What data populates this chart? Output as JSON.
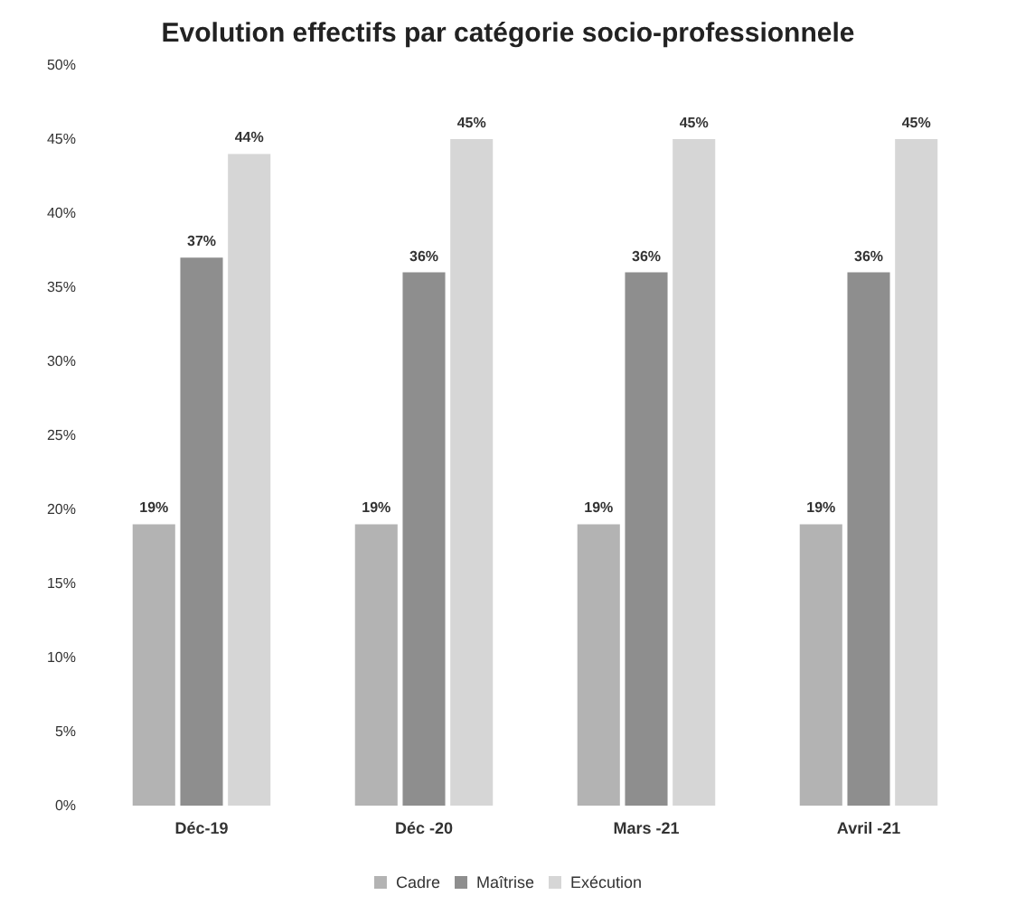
{
  "chart_data": {
    "type": "bar",
    "title": "Evolution effectifs par catégorie socio-professionnele",
    "categories": [
      "Déc-19",
      "Déc -20",
      "Mars -21",
      "Avril -21"
    ],
    "series": [
      {
        "name": "Cadre",
        "color": "#b3b3b3",
        "values": [
          19,
          19,
          19,
          19
        ],
        "value_labels": [
          "19%",
          "19%",
          "19%",
          "19%"
        ]
      },
      {
        "name": "Maîtrise",
        "color": "#8e8e8e",
        "values": [
          37,
          36,
          36,
          36
        ],
        "value_labels": [
          "37%",
          "36%",
          "36%",
          "36%"
        ]
      },
      {
        "name": "Exécution",
        "color": "#d6d6d6",
        "values": [
          44,
          45,
          45,
          45
        ],
        "value_labels": [
          "44%",
          "45%",
          "45%",
          "45%"
        ]
      }
    ],
    "ylim": [
      0,
      50
    ],
    "yticks": [
      {
        "value": 0,
        "label": "0%"
      },
      {
        "value": 5,
        "label": "5%"
      },
      {
        "value": 10,
        "label": "10%"
      },
      {
        "value": 15,
        "label": "15%"
      },
      {
        "value": 20,
        "label": "20%"
      },
      {
        "value": 25,
        "label": "25%"
      },
      {
        "value": 30,
        "label": "30%"
      },
      {
        "value": 35,
        "label": "35%"
      },
      {
        "value": 40,
        "label": "40%"
      },
      {
        "value": 45,
        "label": "45%"
      },
      {
        "value": 50,
        "label": "50%"
      }
    ],
    "grid": false,
    "legend": "bottom"
  }
}
